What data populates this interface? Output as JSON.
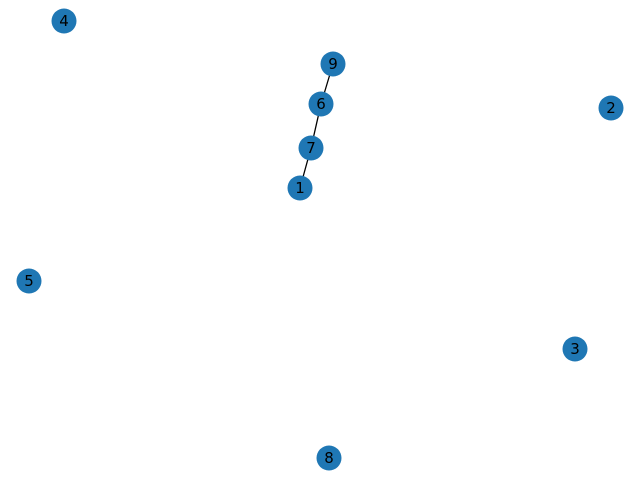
{
  "graph": {
    "node_color": "#1f77b4",
    "label_color": "#000000",
    "edge_color": "#000000",
    "nodes": [
      {
        "id": "1",
        "label": "1"
      },
      {
        "id": "2",
        "label": "2"
      },
      {
        "id": "3",
        "label": "3"
      },
      {
        "id": "4",
        "label": "4"
      },
      {
        "id": "5",
        "label": "5"
      },
      {
        "id": "6",
        "label": "6"
      },
      {
        "id": "7",
        "label": "7"
      },
      {
        "id": "8",
        "label": "8"
      },
      {
        "id": "9",
        "label": "9"
      }
    ],
    "edges": [
      {
        "source": "9",
        "target": "6"
      },
      {
        "source": "6",
        "target": "7"
      },
      {
        "source": "7",
        "target": "1"
      }
    ]
  }
}
